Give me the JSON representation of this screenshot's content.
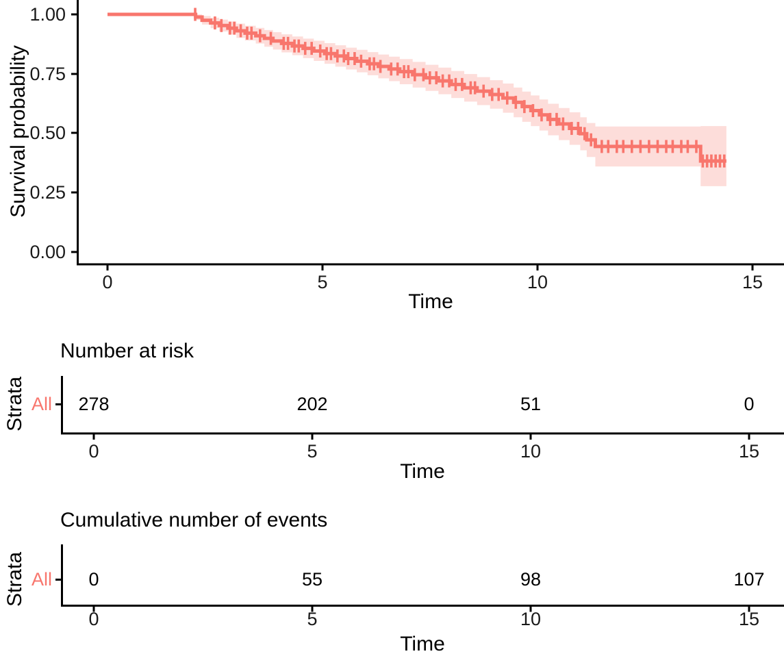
{
  "colors": {
    "stratum": "#F8766D",
    "ribbon": "rgba(248,118,109,0.25)",
    "axis": "#000000",
    "tick_label": "#1a1a1a"
  },
  "main": {
    "ylabel": "Survival probability",
    "xlabel": "Time",
    "yticks": [
      "1.00",
      "0.75",
      "0.50",
      "0.25",
      "0.00"
    ],
    "xticks": [
      "0",
      "5",
      "10",
      "15"
    ]
  },
  "risk": {
    "title": "Number at risk",
    "strata_label": "Strata",
    "row_label": "All",
    "values": [
      "278",
      "202",
      "51",
      "0"
    ],
    "xticks": [
      "0",
      "5",
      "10",
      "15"
    ],
    "xlabel": "Time"
  },
  "events": {
    "title": "Cumulative number of events",
    "strata_label": "Strata",
    "row_label": "All",
    "values": [
      "0",
      "55",
      "98",
      "107"
    ],
    "xticks": [
      "0",
      "5",
      "10",
      "15"
    ],
    "xlabel": "Time"
  },
  "chart_data": {
    "type": "line",
    "subtype": "kaplan-meier-survival-curve",
    "title": "",
    "xlabel": "Time",
    "ylabel": "Survival probability",
    "xlim": [
      0,
      15.7
    ],
    "x_ticks": [
      0,
      5,
      10,
      15
    ],
    "ylim": [
      0,
      1.0
    ],
    "y_ticks": [
      0.0,
      0.25,
      0.5,
      0.75,
      1.0
    ],
    "grid": false,
    "legend": "none",
    "series": [
      {
        "name": "All",
        "color": "#F8766D",
        "ci_shown": true,
        "start": [
          0,
          1.0
        ],
        "end_time": 14.4,
        "steps": [
          [
            2.05,
            0.989,
            0.977,
            1.0
          ],
          [
            2.2,
            0.975,
            0.957,
            0.993
          ],
          [
            2.4,
            0.964,
            0.942,
            0.986
          ],
          [
            2.6,
            0.953,
            0.928,
            0.978
          ],
          [
            2.8,
            0.942,
            0.915,
            0.97
          ],
          [
            3.0,
            0.931,
            0.901,
            0.961
          ],
          [
            3.2,
            0.921,
            0.89,
            0.952
          ],
          [
            3.45,
            0.91,
            0.877,
            0.943
          ],
          [
            3.65,
            0.899,
            0.864,
            0.934
          ],
          [
            3.85,
            0.888,
            0.852,
            0.925
          ],
          [
            4.05,
            0.878,
            0.84,
            0.916
          ],
          [
            4.3,
            0.867,
            0.828,
            0.907
          ],
          [
            4.55,
            0.857,
            0.816,
            0.898
          ],
          [
            4.8,
            0.846,
            0.804,
            0.889
          ],
          [
            5.05,
            0.835,
            0.792,
            0.879
          ],
          [
            5.3,
            0.825,
            0.78,
            0.87
          ],
          [
            5.55,
            0.814,
            0.768,
            0.86
          ],
          [
            5.8,
            0.803,
            0.756,
            0.851
          ],
          [
            6.05,
            0.792,
            0.744,
            0.841
          ],
          [
            6.3,
            0.781,
            0.731,
            0.831
          ],
          [
            6.55,
            0.77,
            0.719,
            0.822
          ],
          [
            6.8,
            0.759,
            0.706,
            0.812
          ],
          [
            7.1,
            0.746,
            0.692,
            0.8
          ],
          [
            7.4,
            0.733,
            0.678,
            0.788
          ],
          [
            7.7,
            0.72,
            0.664,
            0.776
          ],
          [
            8.0,
            0.705,
            0.648,
            0.762
          ],
          [
            8.3,
            0.691,
            0.633,
            0.749
          ],
          [
            8.6,
            0.677,
            0.618,
            0.736
          ],
          [
            8.9,
            0.663,
            0.603,
            0.723
          ],
          [
            9.2,
            0.648,
            0.586,
            0.709
          ],
          [
            9.45,
            0.63,
            0.567,
            0.692
          ],
          [
            9.65,
            0.612,
            0.548,
            0.675
          ],
          [
            9.85,
            0.595,
            0.53,
            0.659
          ],
          [
            10.05,
            0.577,
            0.511,
            0.642
          ],
          [
            10.25,
            0.558,
            0.491,
            0.624
          ],
          [
            10.5,
            0.539,
            0.471,
            0.606
          ],
          [
            10.75,
            0.52,
            0.451,
            0.588
          ],
          [
            11.0,
            0.498,
            0.428,
            0.567
          ],
          [
            11.15,
            0.472,
            0.4,
            0.543
          ],
          [
            11.35,
            0.444,
            0.36,
            0.528
          ],
          [
            13.8,
            0.383,
            0.277,
            0.53
          ]
        ],
        "censor_times": [
          2.04,
          2.5,
          2.65,
          2.85,
          2.95,
          3.1,
          3.25,
          3.35,
          3.55,
          3.8,
          4.1,
          4.2,
          4.35,
          4.45,
          4.6,
          4.75,
          4.95,
          5.1,
          5.2,
          5.35,
          5.5,
          5.6,
          5.75,
          5.9,
          6.1,
          6.2,
          6.35,
          6.6,
          6.75,
          6.9,
          7.0,
          7.15,
          7.35,
          7.5,
          7.65,
          7.8,
          7.95,
          8.1,
          8.25,
          8.45,
          8.55,
          8.75,
          8.95,
          9.1,
          9.3,
          9.5,
          9.7,
          9.9,
          10.1,
          10.3,
          10.45,
          10.6,
          10.8,
          10.95,
          11.1,
          11.25,
          11.5,
          11.65,
          11.85,
          12.0,
          12.2,
          12.4,
          12.6,
          12.8,
          13.0,
          13.15,
          13.35,
          13.5,
          13.7,
          13.85,
          13.95,
          14.05,
          14.15,
          14.25,
          14.35
        ]
      }
    ],
    "risk_table": {
      "title": "Number at risk",
      "ylabel": "Strata",
      "times": [
        0,
        5,
        10,
        15
      ],
      "rows": [
        {
          "label": "All",
          "values": [
            278,
            202,
            51,
            0
          ]
        }
      ]
    },
    "cumulative_events_table": {
      "title": "Cumulative number of events",
      "ylabel": "Strata",
      "times": [
        0,
        5,
        10,
        15
      ],
      "rows": [
        {
          "label": "All",
          "values": [
            0,
            55,
            98,
            107
          ]
        }
      ]
    }
  }
}
